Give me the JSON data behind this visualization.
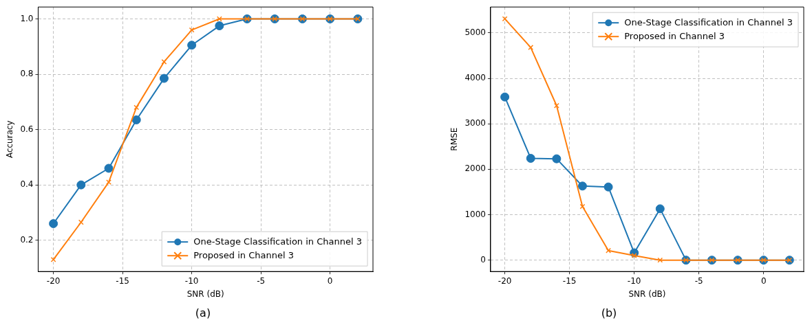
{
  "chart_data": [
    {
      "type": "line",
      "xlabel": "SNR (dB)",
      "ylabel": "Accuracy",
      "annotations": [
        "(a)"
      ],
      "x": [
        -20,
        -18,
        -16,
        -14,
        -12,
        -10,
        -8,
        -6,
        -4,
        -2,
        0,
        2
      ],
      "xlim": [
        -21.1,
        3.1
      ],
      "xticks": [
        -20,
        -15,
        -10,
        -5,
        0
      ],
      "ylim": [
        0.087,
        1.043
      ],
      "yticks": [
        {
          "value": 0.2,
          "label": "0.2"
        },
        {
          "value": 0.4,
          "label": "0.4"
        },
        {
          "value": 0.6,
          "label": "0.6"
        },
        {
          "value": 0.8,
          "label": "0.8"
        },
        {
          "value": 1.0,
          "label": "1.0"
        }
      ],
      "grid": true,
      "legend": "bottom right",
      "line_style": "solid",
      "series": [
        {
          "name": "One-Stage Classification in Channel 3",
          "color": "#1f77b4",
          "marker": "circle",
          "values": [
            0.26,
            0.4,
            0.46,
            0.635,
            0.785,
            0.905,
            0.975,
            1,
            1,
            1,
            1,
            1
          ]
        },
        {
          "name": "Proposed in Channel 3",
          "color": "#ff7f0e",
          "marker": "cross",
          "values": [
            0.13,
            0.265,
            0.41,
            0.68,
            0.845,
            0.96,
            1,
            1,
            1,
            1,
            1,
            1
          ]
        }
      ]
    },
    {
      "type": "line",
      "xlabel": "SNR (dB)",
      "ylabel": "RMSE",
      "annotations": [
        "(b)"
      ],
      "x": [
        -20,
        -18,
        -16,
        -14,
        -12,
        -10,
        -8,
        -6,
        -4,
        -2,
        0,
        2
      ],
      "xlim": [
        -21.1,
        3.1
      ],
      "xticks": [
        -20,
        -15,
        -10,
        -5,
        0
      ],
      "ylim": [
        -250,
        5570
      ],
      "yticks": [
        0,
        1000,
        2000,
        3000,
        4000,
        5000
      ],
      "grid": true,
      "legend": "top right",
      "line_style": "solid",
      "series": [
        {
          "name": "One-Stage Classification in Channel 3",
          "color": "#1f77b4",
          "marker": "circle",
          "values": [
            3590,
            2240,
            2230,
            1630,
            1610,
            160,
            1130,
            0,
            0,
            0,
            0,
            0
          ]
        },
        {
          "name": "Proposed in Channel 3",
          "color": "#ff7f0e",
          "marker": "cross",
          "values": [
            5310,
            4680,
            3400,
            1180,
            210,
            100,
            0,
            0,
            0,
            0,
            0,
            0
          ]
        }
      ]
    }
  ]
}
